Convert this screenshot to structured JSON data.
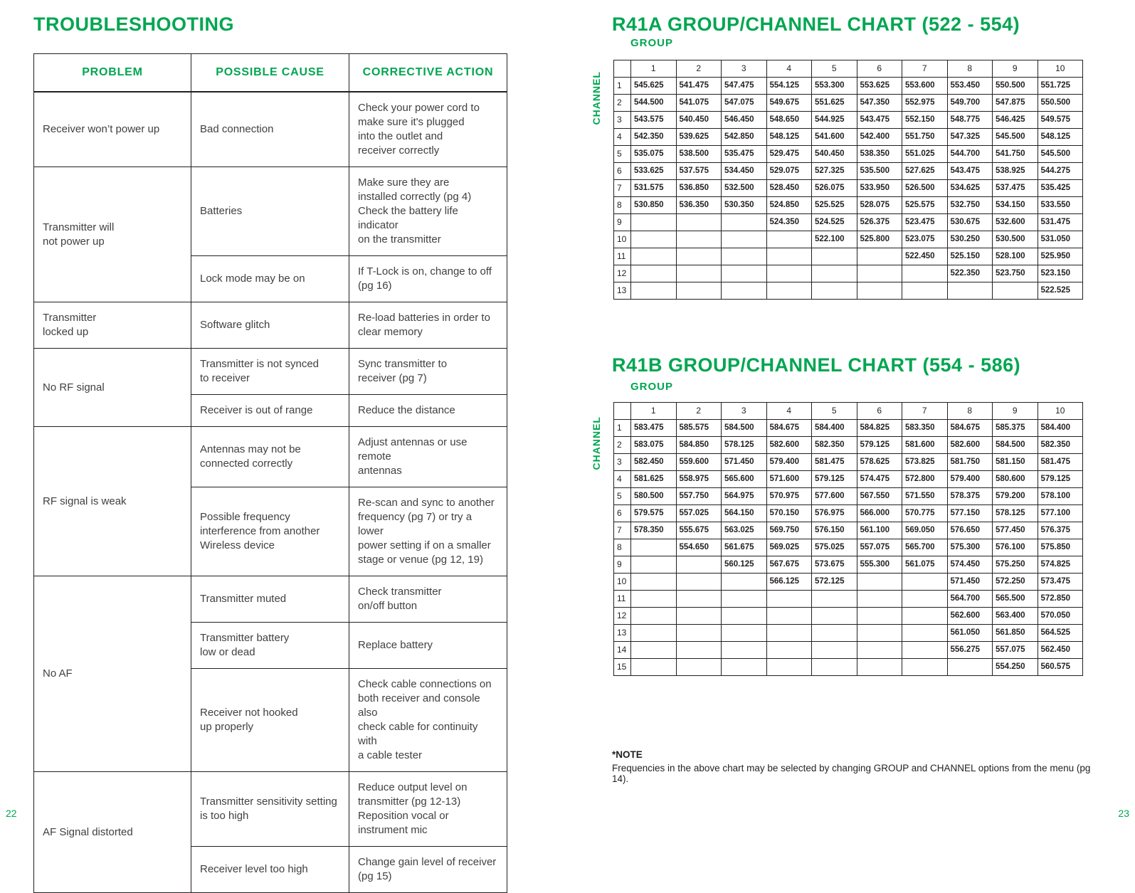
{
  "colors": {
    "green": "#00a651",
    "text": "#414042",
    "border": "#231f20"
  },
  "left_page": {
    "title": "TROUBLESHOOTING",
    "page_number": "22",
    "table": {
      "headers": [
        "PROBLEM",
        "POSSIBLE CAUSE",
        "CORRECTIVE ACTION"
      ],
      "groups": [
        {
          "problem": "Receiver won’t power up",
          "items": [
            {
              "cause": "Bad connection",
              "action": "Check your power cord to\nmake sure it's plugged\ninto the outlet and\nreceiver correctly"
            }
          ]
        },
        {
          "problem": "Transmitter will\nnot power up",
          "items": [
            {
              "cause": "Batteries",
              "action": "Make sure they are\ninstalled correctly (pg 4)\nCheck the battery life indicator\non the transmitter"
            },
            {
              "cause": "Lock mode may be on",
              "action": "If T-Lock is on, change to off\n(pg 16)"
            }
          ]
        },
        {
          "problem": "Transmitter\nlocked up",
          "items": [
            {
              "cause": "Software glitch",
              "action": "Re-load batteries in order to\nclear memory"
            }
          ]
        },
        {
          "problem": "No RF signal",
          "items": [
            {
              "cause": "Transmitter is not synced\nto receiver",
              "action": "Sync transmitter to\nreceiver (pg 7)"
            },
            {
              "cause": "Receiver is out of range",
              "action": "Reduce the distance"
            }
          ]
        },
        {
          "problem": "RF signal is weak",
          "items": [
            {
              "cause": "Antennas may not be\nconnected correctly",
              "action": "Adjust antennas or use remote\nantennas"
            },
            {
              "cause": "Possible frequency\ninterference from another\nWireless device",
              "action": "Re-scan and sync to another\nfrequency (pg 7) or try a lower\npower setting if on a smaller\nstage or venue (pg 12, 19)"
            }
          ]
        },
        {
          "problem": "No AF",
          "items": [
            {
              "cause": "Transmitter muted",
              "action": "Check transmitter\non/off button"
            },
            {
              "cause": "Transmitter battery\nlow or dead",
              "action": "Replace battery"
            },
            {
              "cause": "Receiver not hooked\nup properly",
              "action": "Check cable connections on\nboth receiver and console also\ncheck cable for continuity with\na cable tester"
            }
          ]
        },
        {
          "problem": "AF Signal distorted",
          "items": [
            {
              "cause": "Transmitter sensitivity setting\nis too high",
              "action": "Reduce output level on\ntransmitter (pg 12-13)\nReposition vocal or\ninstrument mic"
            },
            {
              "cause": "Receiver level too high",
              "action": "Change gain level of receiver\n(pg 15)"
            }
          ]
        }
      ]
    }
  },
  "right_page": {
    "page_number": "23",
    "charts": [
      {
        "title": "R41A GROUP/CHANNEL CHART (522 - 554)",
        "group_label": "GROUP",
        "channel_label": "CHANNEL",
        "head": [
          [
            "",
            "1",
            "2",
            "3",
            "4",
            "5",
            "6",
            "7",
            "8",
            "9",
            "10"
          ]
        ],
        "rows": [
          [
            "1",
            "545.625",
            "541.475",
            "547.475",
            "554.125",
            "553.300",
            "553.625",
            "553.600",
            "553.450",
            "550.500",
            "551.725"
          ],
          [
            "2",
            "544.500",
            "541.075",
            "547.075",
            "549.675",
            "551.625",
            "547.350",
            "552.975",
            "549.700",
            "547.875",
            "550.500"
          ],
          [
            "3",
            "543.575",
            "540.450",
            "546.450",
            "548.650",
            "544.925",
            "543.475",
            "552.150",
            "548.775",
            "546.425",
            "549.575"
          ],
          [
            "4",
            "542.350",
            "539.625",
            "542.850",
            "548.125",
            "541.600",
            "542.400",
            "551.750",
            "547.325",
            "545.500",
            "548.125"
          ],
          [
            "5",
            "535.075",
            "538.500",
            "535.475",
            "529.475",
            "540.450",
            "538.350",
            "551.025",
            "544.700",
            "541.750",
            "545.500"
          ],
          [
            "6",
            "533.625",
            "537.575",
            "534.450",
            "529.075",
            "527.325",
            "535.500",
            "527.625",
            "543.475",
            "538.925",
            "544.275"
          ],
          [
            "7",
            "531.575",
            "536.850",
            "532.500",
            "528.450",
            "526.075",
            "533.950",
            "526.500",
            "534.625",
            "537.475",
            "535.425"
          ],
          [
            "8",
            "530.850",
            "536.350",
            "530.350",
            "524.850",
            "525.525",
            "528.075",
            "525.575",
            "532.750",
            "534.150",
            "533.550"
          ],
          [
            "9",
            "",
            "",
            "",
            "524.350",
            "524.525",
            "526.375",
            "523.475",
            "530.675",
            "532.600",
            "531.475"
          ],
          [
            "10",
            "",
            "",
            "",
            "",
            "522.100",
            "525.800",
            "523.075",
            "530.250",
            "530.500",
            "531.050"
          ],
          [
            "11",
            "",
            "",
            "",
            "",
            "",
            "",
            "522.450",
            "525.150",
            "528.100",
            "525.950"
          ],
          [
            "12",
            "",
            "",
            "",
            "",
            "",
            "",
            "",
            "522.350",
            "523.750",
            "523.150"
          ],
          [
            "13",
            "",
            "",
            "",
            "",
            "",
            "",
            "",
            "",
            "",
            "522.525"
          ]
        ]
      },
      {
        "title": "R41B GROUP/CHANNEL CHART (554 - 586)",
        "group_label": "GROUP",
        "channel_label": "CHANNEL",
        "head": [
          [
            "",
            "1",
            "2",
            "3",
            "4",
            "5",
            "6",
            "7",
            "8",
            "9",
            "10"
          ]
        ],
        "rows": [
          [
            "1",
            "583.475",
            "585.575",
            "584.500",
            "584.675",
            "584.400",
            "584.825",
            "583.350",
            "584.675",
            "585.375",
            "584.400"
          ],
          [
            "2",
            "583.075",
            "584.850",
            "578.125",
            "582.600",
            "582.350",
            "579.125",
            "581.600",
            "582.600",
            "584.500",
            "582.350"
          ],
          [
            "3",
            "582.450",
            "559.600",
            "571.450",
            "579.400",
            "581.475",
            "578.625",
            "573.825",
            "581.750",
            "581.150",
            "581.475"
          ],
          [
            "4",
            "581.625",
            "558.975",
            "565.600",
            "571.600",
            "579.125",
            "574.475",
            "572.800",
            "579.400",
            "580.600",
            "579.125"
          ],
          [
            "5",
            "580.500",
            "557.750",
            "564.975",
            "570.975",
            "577.600",
            "567.550",
            "571.550",
            "578.375",
            "579.200",
            "578.100"
          ],
          [
            "6",
            "579.575",
            "557.025",
            "564.150",
            "570.150",
            "576.975",
            "566.000",
            "570.775",
            "577.150",
            "578.125",
            "577.100"
          ],
          [
            "7",
            "578.350",
            "555.675",
            "563.025",
            "569.750",
            "576.150",
            "561.100",
            "569.050",
            "576.650",
            "577.450",
            "576.375"
          ],
          [
            "8",
            "",
            "554.650",
            "561.675",
            "569.025",
            "575.025",
            "557.075",
            "565.700",
            "575.300",
            "576.100",
            "575.850"
          ],
          [
            "9",
            "",
            "",
            "560.125",
            "567.675",
            "573.675",
            "555.300",
            "561.075",
            "574.450",
            "575.250",
            "574.825"
          ],
          [
            "10",
            "",
            "",
            "",
            "566.125",
            "572.125",
            "",
            "",
            "571.450",
            "572.250",
            "573.475"
          ],
          [
            "11",
            "",
            "",
            "",
            "",
            "",
            "",
            "",
            "564.700",
            "565.500",
            "572.850"
          ],
          [
            "12",
            "",
            "",
            "",
            "",
            "",
            "",
            "",
            "562.600",
            "563.400",
            "570.050"
          ],
          [
            "13",
            "",
            "",
            "",
            "",
            "",
            "",
            "",
            "561.050",
            "561.850",
            "564.525"
          ],
          [
            "14",
            "",
            "",
            "",
            "",
            "",
            "",
            "",
            "556.275",
            "557.075",
            "562.450"
          ],
          [
            "15",
            "",
            "",
            "",
            "",
            "",
            "",
            "",
            "",
            "554.250",
            "560.575"
          ]
        ]
      }
    ],
    "note_title": "*NOTE",
    "note_text": "Frequencies in the above chart may be selected by changing GROUP and CHANNEL options from the menu (pg 14)."
  }
}
